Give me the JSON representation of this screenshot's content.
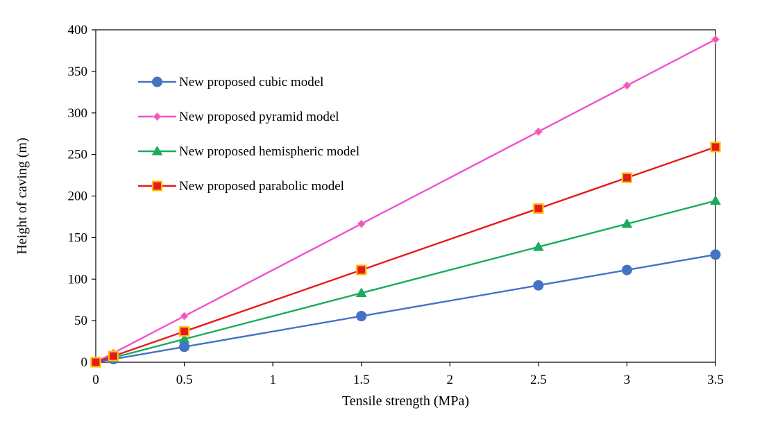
{
  "chart_data": {
    "type": "line",
    "xlabel": "Tensile strength (MPa)",
    "ylabel": "Height of caving (m)",
    "xlim": [
      0,
      3.5
    ],
    "ylim": [
      0,
      400
    ],
    "x_ticks": [
      0,
      0.5,
      1,
      1.5,
      2,
      2.5,
      3,
      3.5
    ],
    "x_tick_labels": [
      "0",
      "0.5",
      "1",
      "1.5",
      "2",
      "2.5",
      "3",
      "3.5"
    ],
    "y_ticks": [
      0,
      50,
      100,
      150,
      200,
      250,
      300,
      350,
      400
    ],
    "y_tick_labels": [
      "0",
      "50",
      "100",
      "150",
      "200",
      "250",
      "300",
      "350",
      "400"
    ],
    "grid": false,
    "legend_position": "upper-left",
    "x": [
      0,
      0.1,
      0.5,
      1.5,
      2.5,
      3,
      3.5
    ],
    "series": [
      {
        "name": "New proposed cubic model",
        "values": [
          0,
          3.7,
          18.5,
          55.5,
          92.5,
          111,
          129.5
        ],
        "color": "#4472C4",
        "marker": "circle"
      },
      {
        "name": "New proposed pyramid model",
        "values": [
          0,
          11.1,
          55.5,
          166.5,
          277.5,
          333,
          388.5
        ],
        "color": "#F24FD2",
        "marker": "diamond"
      },
      {
        "name": "New proposed hemispheric model",
        "values": [
          0,
          5.55,
          27.75,
          83.25,
          138.75,
          166.5,
          194.25
        ],
        "color": "#1AAB5C",
        "marker": "triangle"
      },
      {
        "name": "New proposed parabolic model",
        "values": [
          0,
          7.4,
          37,
          111,
          185,
          222,
          259
        ],
        "color": "#E41A1C",
        "marker": "square"
      }
    ]
  }
}
